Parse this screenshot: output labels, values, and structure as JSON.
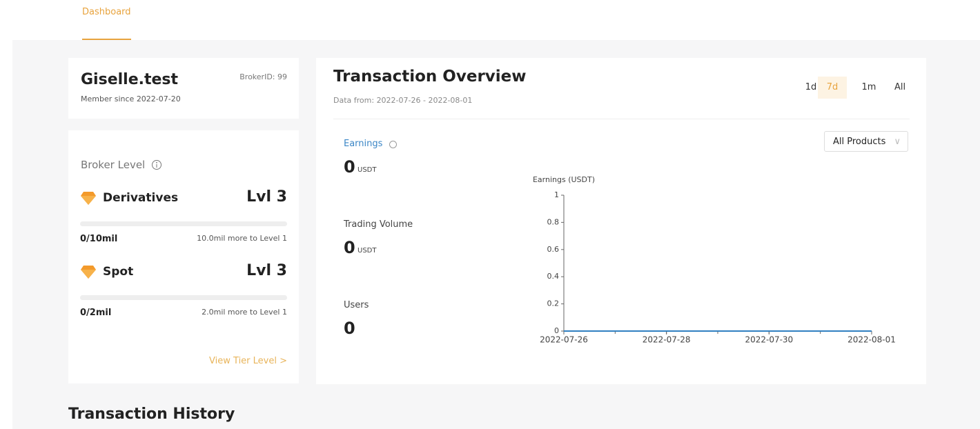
{
  "nav": {
    "tab": "Dashboard"
  },
  "profile": {
    "name": "Giselle.test",
    "broker_id": "BrokerID: 99",
    "member_since": "Member since 2022-07-20"
  },
  "broker_level": {
    "title": "Broker Level",
    "items": [
      {
        "name": "Derivatives",
        "level": "Lvl 3",
        "progress": "0/10mil",
        "remaining": "10.0mil more to Level 1"
      },
      {
        "name": "Spot",
        "level": "Lvl 3",
        "progress": "0/2mil",
        "remaining": "2.0mil more to Level 1"
      }
    ],
    "link": "View Tier Level >"
  },
  "overview": {
    "title": "Transaction Overview",
    "range": "Data from: 2022-07-26 - 2022-08-01",
    "periods": [
      "1d",
      "7d",
      "1m",
      "All"
    ],
    "active_period": 1,
    "filter": "All Products",
    "stats": [
      {
        "label": "Earnings",
        "value": 0,
        "unit": "USDT"
      },
      {
        "label": "Trading Volume",
        "value": 0,
        "unit": "USDT"
      },
      {
        "label": "Users",
        "value": 0
      }
    ]
  },
  "chart_data": {
    "type": "line",
    "y_label": "Earnings (USDT)",
    "x": [
      "2022-07-26",
      "2022-07-27",
      "2022-07-28",
      "2022-07-29",
      "2022-07-30",
      "2022-07-31",
      "2022-08-01"
    ],
    "values": [
      0,
      0,
      0,
      0,
      0,
      0,
      0
    ],
    "color": "#2f7fc1",
    "xlim": [
      "2022-07-26",
      "2022-08-01"
    ],
    "xticks": [
      "2022-07-26",
      "2022-07-28",
      "2022-07-30",
      "2022-08-01"
    ],
    "ylim": [
      0,
      1
    ],
    "yticks": [
      0,
      0.2,
      0.4,
      0.6,
      0.8,
      1
    ]
  },
  "section": {
    "title": "Transaction History"
  }
}
